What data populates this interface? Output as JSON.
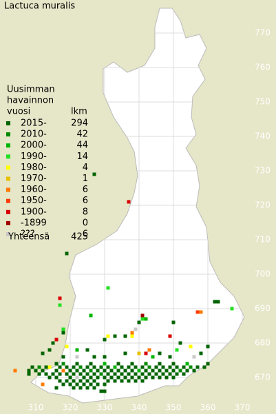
{
  "title": "Lactuca muralis",
  "legend": {
    "header": [
      "Uusimman",
      "havainnon",
      "vuosi"
    ],
    "count_header": "lkm",
    "rows": [
      {
        "label": "2015-",
        "count": 294,
        "color": "#006400"
      },
      {
        "label": "2010-",
        "count": 42,
        "color": "#008a00"
      },
      {
        "label": "2000-",
        "count": 44,
        "color": "#00b400"
      },
      {
        "label": "1990-",
        "count": 14,
        "color": "#22e022"
      },
      {
        "label": "1980-",
        "count": 4,
        "color": "#ffff00"
      },
      {
        "label": "1970-",
        "count": 1,
        "color": "#e8c000"
      },
      {
        "label": "1960-",
        "count": 6,
        "color": "#ff7a00"
      },
      {
        "label": "1950-",
        "count": 6,
        "color": "#ff3a00"
      },
      {
        "label": "1900-",
        "count": 8,
        "color": "#d80000"
      },
      {
        "label": "-1899",
        "count": 0,
        "color": "#a00000"
      },
      {
        "label": "???",
        "count": 6,
        "color": "#c8c8c8"
      }
    ],
    "total_label": "Yhteensä",
    "total": 425
  },
  "map": {
    "north_ticks": [
      770,
      760,
      750,
      740,
      730,
      720,
      710,
      700,
      690,
      680,
      670
    ],
    "east_ticks": [
      310,
      320,
      330,
      340,
      350,
      360,
      370
    ],
    "squares": [
      [
        327,
        729,
        0
      ],
      [
        337,
        721,
        8
      ],
      [
        319,
        706,
        0
      ],
      [
        331,
        696,
        3
      ],
      [
        362,
        692,
        0
      ],
      [
        363,
        692,
        0
      ],
      [
        367,
        690,
        3
      ],
      [
        357,
        689,
        7
      ],
      [
        358,
        689,
        6
      ],
      [
        317,
        693,
        8
      ],
      [
        317,
        691,
        3
      ],
      [
        341,
        688,
        9
      ],
      [
        341,
        687,
        3
      ],
      [
        342,
        687,
        2
      ],
      [
        326,
        688,
        2
      ],
      [
        350,
        686,
        0
      ],
      [
        340,
        686,
        0
      ],
      [
        339,
        684,
        10
      ],
      [
        349,
        682,
        8
      ],
      [
        338,
        683,
        6
      ],
      [
        338,
        682,
        4
      ],
      [
        331,
        682,
        4
      ],
      [
        336,
        682,
        0
      ],
      [
        330,
        681,
        0
      ],
      [
        333,
        682,
        0
      ],
      [
        315,
        680,
        0
      ],
      [
        316,
        681,
        8
      ],
      [
        318,
        684,
        3
      ],
      [
        318,
        683,
        0
      ],
      [
        319,
        679,
        4
      ],
      [
        360,
        679,
        0
      ],
      [
        355,
        679,
        4
      ],
      [
        352,
        680,
        0
      ],
      [
        358,
        677,
        0
      ],
      [
        351,
        678,
        3
      ],
      [
        356,
        676,
        10
      ],
      [
        314,
        678,
        0
      ],
      [
        312,
        677,
        0
      ],
      [
        318,
        676,
        0
      ],
      [
        322,
        676,
        10
      ],
      [
        330,
        676,
        0
      ],
      [
        340,
        677,
        5
      ],
      [
        342,
        677,
        8
      ],
      [
        343,
        678,
        6
      ],
      [
        346,
        677,
        0
      ],
      [
        349,
        676,
        0
      ],
      [
        336,
        677,
        0
      ],
      [
        325,
        678,
        0
      ],
      [
        327,
        676,
        0
      ],
      [
        322,
        678,
        2
      ],
      [
        344,
        676,
        2
      ],
      [
        314,
        673,
        4
      ],
      [
        304,
        672,
        6
      ],
      [
        308,
        671,
        0
      ],
      [
        312,
        668,
        6
      ],
      [
        316,
        667,
        0
      ],
      [
        322,
        670,
        10
      ],
      [
        318,
        672,
        6
      ],
      [
        329,
        666,
        0
      ],
      [
        330,
        666,
        0
      ],
      [
        316,
        674,
        0
      ],
      [
        318,
        674,
        1
      ],
      [
        322,
        674,
        0
      ],
      [
        326,
        674,
        0
      ],
      [
        330,
        674,
        2
      ],
      [
        334,
        674,
        0
      ],
      [
        338,
        674,
        0
      ],
      [
        342,
        674,
        1
      ],
      [
        346,
        674,
        0
      ],
      [
        350,
        674,
        0
      ],
      [
        354,
        674,
        2
      ],
      [
        360,
        674,
        0
      ],
      [
        309,
        673,
        0
      ],
      [
        311,
        673,
        1
      ],
      [
        313,
        673,
        0
      ],
      [
        317,
        673,
        0
      ],
      [
        319,
        673,
        0
      ],
      [
        321,
        673,
        0
      ],
      [
        323,
        673,
        1
      ],
      [
        325,
        673,
        0
      ],
      [
        327,
        673,
        0
      ],
      [
        329,
        673,
        0
      ],
      [
        331,
        673,
        0
      ],
      [
        333,
        673,
        2
      ],
      [
        335,
        673,
        0
      ],
      [
        337,
        673,
        0
      ],
      [
        339,
        673,
        0
      ],
      [
        341,
        673,
        0
      ],
      [
        343,
        673,
        1
      ],
      [
        345,
        673,
        0
      ],
      [
        347,
        673,
        0
      ],
      [
        349,
        673,
        0
      ],
      [
        351,
        673,
        0
      ],
      [
        353,
        673,
        0
      ],
      [
        355,
        673,
        1
      ],
      [
        357,
        673,
        0
      ],
      [
        359,
        673,
        0
      ],
      [
        308,
        672,
        0
      ],
      [
        310,
        672,
        0
      ],
      [
        312,
        672,
        0
      ],
      [
        316,
        672,
        0
      ],
      [
        320,
        672,
        0
      ],
      [
        322,
        672,
        0
      ],
      [
        324,
        672,
        0
      ],
      [
        326,
        672,
        1
      ],
      [
        328,
        672,
        0
      ],
      [
        330,
        672,
        0
      ],
      [
        332,
        672,
        0
      ],
      [
        334,
        672,
        0
      ],
      [
        336,
        672,
        0
      ],
      [
        338,
        672,
        0
      ],
      [
        340,
        672,
        2
      ],
      [
        342,
        672,
        0
      ],
      [
        344,
        672,
        0
      ],
      [
        346,
        672,
        0
      ],
      [
        348,
        672,
        0
      ],
      [
        350,
        672,
        0
      ],
      [
        352,
        672,
        1
      ],
      [
        354,
        672,
        0
      ],
      [
        356,
        672,
        0
      ],
      [
        311,
        671,
        0
      ],
      [
        313,
        671,
        0
      ],
      [
        315,
        671,
        0
      ],
      [
        317,
        671,
        0
      ],
      [
        319,
        671,
        0
      ],
      [
        321,
        671,
        0
      ],
      [
        323,
        671,
        0
      ],
      [
        325,
        671,
        0
      ],
      [
        327,
        671,
        0
      ],
      [
        329,
        671,
        1
      ],
      [
        331,
        671,
        0
      ],
      [
        333,
        671,
        0
      ],
      [
        335,
        671,
        0
      ],
      [
        337,
        671,
        0
      ],
      [
        339,
        671,
        0
      ],
      [
        341,
        671,
        0
      ],
      [
        343,
        671,
        0
      ],
      [
        345,
        671,
        0
      ],
      [
        347,
        671,
        0
      ],
      [
        349,
        671,
        0
      ],
      [
        351,
        671,
        0
      ],
      [
        353,
        671,
        0
      ],
      [
        314,
        670,
        0
      ],
      [
        316,
        670,
        0
      ],
      [
        320,
        670,
        0
      ],
      [
        324,
        670,
        0
      ],
      [
        326,
        670,
        0
      ],
      [
        328,
        670,
        0
      ],
      [
        330,
        670,
        0
      ],
      [
        332,
        670,
        0
      ],
      [
        334,
        670,
        0
      ],
      [
        336,
        670,
        0
      ],
      [
        338,
        670,
        0
      ],
      [
        340,
        670,
        0
      ],
      [
        342,
        670,
        0
      ],
      [
        344,
        670,
        0
      ],
      [
        346,
        670,
        0
      ],
      [
        348,
        670,
        0
      ],
      [
        350,
        670,
        0
      ],
      [
        317,
        669,
        0
      ],
      [
        319,
        669,
        0
      ],
      [
        321,
        669,
        0
      ],
      [
        323,
        669,
        0
      ],
      [
        325,
        669,
        0
      ],
      [
        327,
        669,
        0
      ],
      [
        331,
        669,
        0
      ],
      [
        333,
        669,
        0
      ],
      [
        335,
        669,
        0
      ],
      [
        337,
        669,
        0
      ],
      [
        339,
        669,
        0
      ],
      [
        341,
        669,
        0
      ],
      [
        318,
        668,
        0
      ],
      [
        320,
        668,
        0
      ],
      [
        322,
        668,
        0
      ],
      [
        324,
        668,
        0
      ],
      [
        326,
        668,
        0
      ],
      [
        328,
        668,
        0
      ],
      [
        330,
        668,
        0
      ],
      [
        321,
        667,
        0
      ],
      [
        323,
        667,
        0
      ],
      [
        325,
        667,
        0
      ],
      [
        327,
        667,
        0
      ]
    ]
  }
}
